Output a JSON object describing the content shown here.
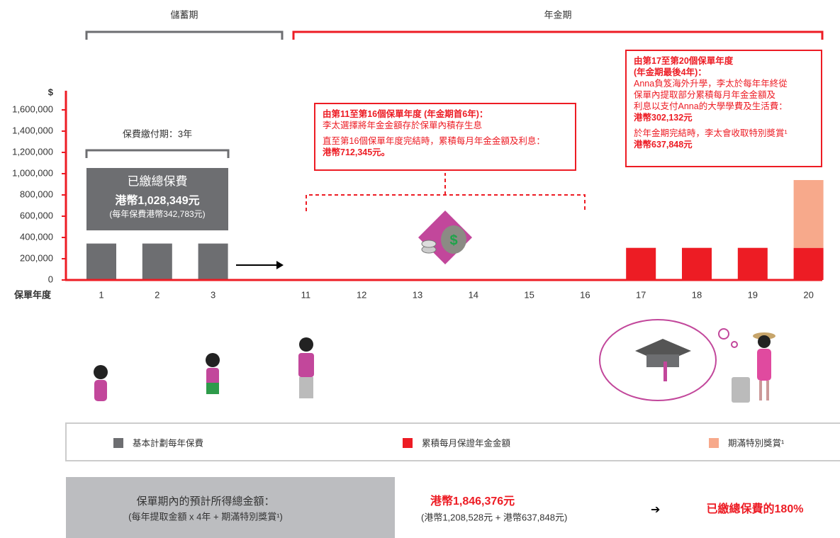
{
  "periods": {
    "savings": "儲蓄期",
    "annuity": "年金期"
  },
  "chart_data": {
    "type": "bar",
    "stacked": true,
    "x_label": "保單年度",
    "y_label": "$",
    "categories": [
      "1",
      "2",
      "3",
      "11",
      "12",
      "13",
      "14",
      "15",
      "16",
      "17",
      "18",
      "19",
      "20"
    ],
    "series": [
      {
        "name": "基本計劃每年保費",
        "color": "#6d6e71",
        "values": [
          342783,
          342783,
          342783,
          null,
          null,
          null,
          null,
          null,
          null,
          null,
          null,
          null,
          null
        ]
      },
      {
        "name": "累積每月保證年金金額",
        "color": "#ed1c24",
        "values": [
          null,
          null,
          null,
          null,
          null,
          null,
          null,
          null,
          null,
          302132,
          302132,
          302132,
          302132
        ]
      },
      {
        "name": "期滿特別獎賞¹",
        "color": "#f7a98b",
        "values": [
          null,
          null,
          null,
          null,
          null,
          null,
          null,
          null,
          null,
          null,
          null,
          null,
          637848
        ]
      }
    ],
    "ylim": [
      0,
      1780000
    ],
    "yticks": [
      0,
      {
        "value": 200000,
        "label": "200,000"
      },
      {
        "value": 400000,
        "label": "400,000"
      },
      {
        "value": 600000,
        "label": "600,000"
      },
      {
        "value": 800000,
        "label": "800,000"
      },
      {
        "value": 1000000,
        "label": "1,000,000"
      },
      {
        "value": 1200000,
        "label": "1,200,000"
      },
      {
        "value": 1400000,
        "label": "1,400,000"
      },
      {
        "value": 1600000,
        "label": "1,600,000"
      }
    ],
    "annotations": {
      "premium_period": "保費繳付期：3年",
      "total_premium_label": "已繳總保費",
      "total_premium_value": "港幣1,028,349元",
      "annual_premium": "(每年保費港幣342,783元)",
      "phase1": {
        "title": "由第11至第16個保單年度 (年金期首6年)：",
        "line1": "李太選擇將年金金額存於保單內積存生息",
        "line2": "直至第16個保單年度完結時，累積每月年金金額及利息：",
        "amount": "港幣712,345元。"
      },
      "phase2": {
        "title": "由第17至第20個保單年度",
        "title2": "(年金期最後4年)：",
        "body": [
          "Anna負笈海外升學，李太於每年年終從",
          "保單內提取部分累積每月年金金額及",
          "利息以支付Anna的大學學費及生活費："
        ],
        "amount": "港幣302,132元",
        "bonus": "於年金期完結時，李太會收取特別獎賞¹",
        "bonus_amount": "港幣637,848元"
      }
    }
  },
  "summary": {
    "label": "保單期內的預計所得總金額：",
    "label_note": "(每年提取金額 x 4年 + 期滿特別獎賞¹)",
    "total": "港幣1,846,376元",
    "breakdown": "(港幣1,208,528元 + 港幣637,848元)",
    "result": "已繳總保費的180%"
  }
}
